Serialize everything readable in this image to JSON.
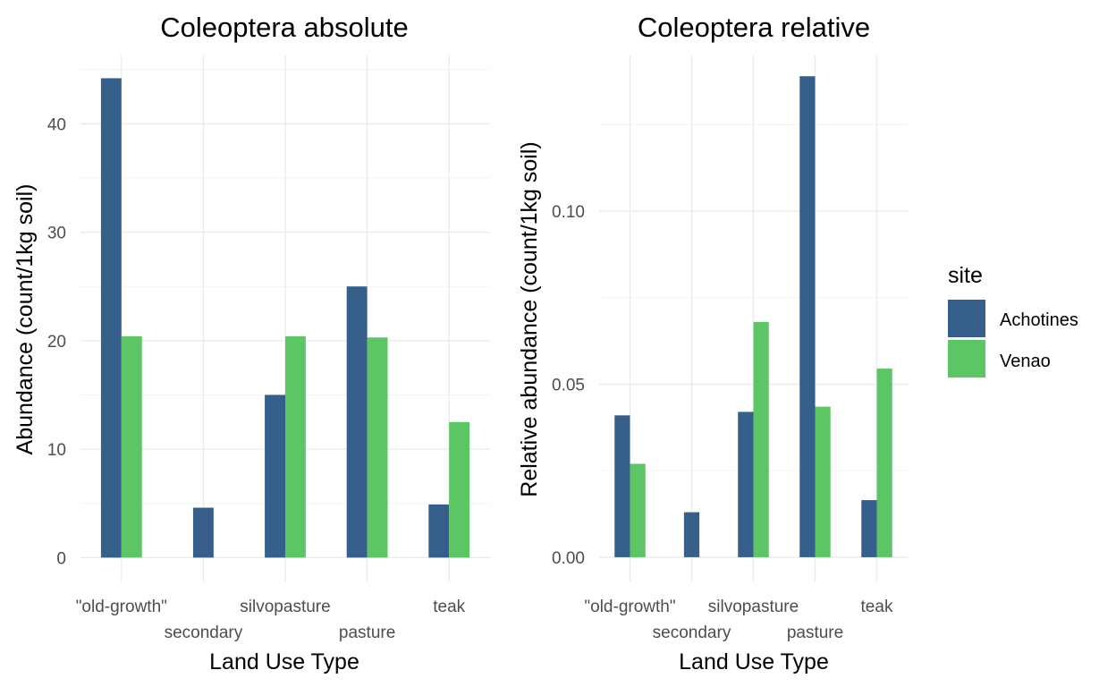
{
  "colors": {
    "Achotines": "#365f8c",
    "Venao": "#5cc664"
  },
  "legend": {
    "title": "site",
    "items": [
      {
        "label": "Achotines",
        "color": "#365f8c"
      },
      {
        "label": "Venao",
        "color": "#5cc664"
      }
    ]
  },
  "chart_data": [
    {
      "type": "bar",
      "title": "Coleoptera absolute",
      "xlabel": "Land Use Type",
      "ylabel": "Abundance (count/1kg soil)",
      "categories": [
        "\"old-growth\"",
        "secondary",
        "silvopasture",
        "pasture",
        "teak"
      ],
      "series": [
        {
          "name": "Achotines",
          "values": [
            44.2,
            4.6,
            15.0,
            25.0,
            4.9
          ]
        },
        {
          "name": "Venao",
          "values": [
            20.4,
            null,
            20.4,
            20.3,
            12.5
          ]
        }
      ],
      "ylim": [
        -2.2,
        46.3
      ],
      "yticks": [
        0,
        10,
        20,
        30,
        40
      ],
      "yticklabels": [
        "0",
        "10",
        "20",
        "30",
        "40"
      ],
      "grid": true
    },
    {
      "type": "bar",
      "title": "Coleoptera relative",
      "xlabel": "Land Use Type",
      "ylabel": "Relative abundance (count/1kg soil)",
      "categories": [
        "\"old-growth\"",
        "secondary",
        "silvopasture",
        "pasture",
        "teak"
      ],
      "series": [
        {
          "name": "Achotines",
          "values": [
            0.041,
            0.013,
            0.042,
            0.139,
            0.0165
          ]
        },
        {
          "name": "Venao",
          "values": [
            0.027,
            null,
            0.068,
            0.0435,
            0.0545
          ]
        }
      ],
      "ylim": [
        -0.007,
        0.145
      ],
      "yticks": [
        0,
        0.05,
        0.1
      ],
      "yticklabels": [
        "0.00",
        "0.05",
        "0.10"
      ],
      "grid": true
    }
  ]
}
